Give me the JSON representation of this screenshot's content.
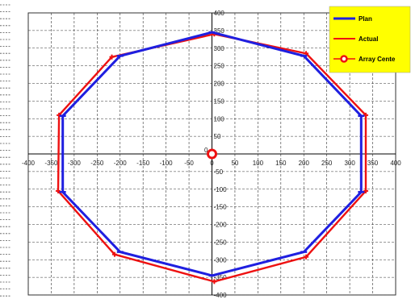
{
  "chart_data": {
    "type": "scatter",
    "title": "",
    "xlabel": "",
    "ylabel": "",
    "xlim": [
      -400,
      400
    ],
    "ylim": [
      -400,
      400
    ],
    "x_ticks": [
      -400,
      -350,
      -300,
      -250,
      -200,
      -150,
      -100,
      -50,
      0,
      50,
      100,
      150,
      200,
      250,
      300,
      350,
      400
    ],
    "y_ticks": [
      400,
      350,
      300,
      250,
      200,
      150,
      100,
      50,
      0,
      -50,
      -100,
      -150,
      -200,
      -250,
      -300,
      -350,
      -400
    ],
    "grid": true,
    "legend_position": "top-right",
    "series": [
      {
        "name": "Plan",
        "color": "#1f1fe0",
        "marker": "dash",
        "closed": true,
        "points": [
          [
            0,
            345
          ],
          [
            200,
            278
          ],
          [
            325,
            108
          ],
          [
            325,
            -108
          ],
          [
            200,
            -278
          ],
          [
            0,
            -345
          ],
          [
            -200,
            -278
          ],
          [
            -325,
            -108
          ],
          [
            -325,
            108
          ],
          [
            -200,
            278
          ]
        ]
      },
      {
        "name": "Actual",
        "color": "#ee1111",
        "marker": "cross",
        "closed": true,
        "points": [
          [
            5,
            340
          ],
          [
            205,
            285
          ],
          [
            335,
            110
          ],
          [
            335,
            -105
          ],
          [
            205,
            -292
          ],
          [
            5,
            -362
          ],
          [
            -212,
            -285
          ],
          [
            -335,
            -105
          ],
          [
            -333,
            110
          ],
          [
            -218,
            275
          ]
        ]
      },
      {
        "name": "Array Center",
        "color": "#ee1111",
        "marker": "ring",
        "closed": false,
        "points": [
          [
            0,
            0
          ]
        ]
      }
    ]
  },
  "legend": {
    "background": "#ffff00",
    "items": [
      "Plan",
      "Actual",
      "Array Cente"
    ]
  }
}
